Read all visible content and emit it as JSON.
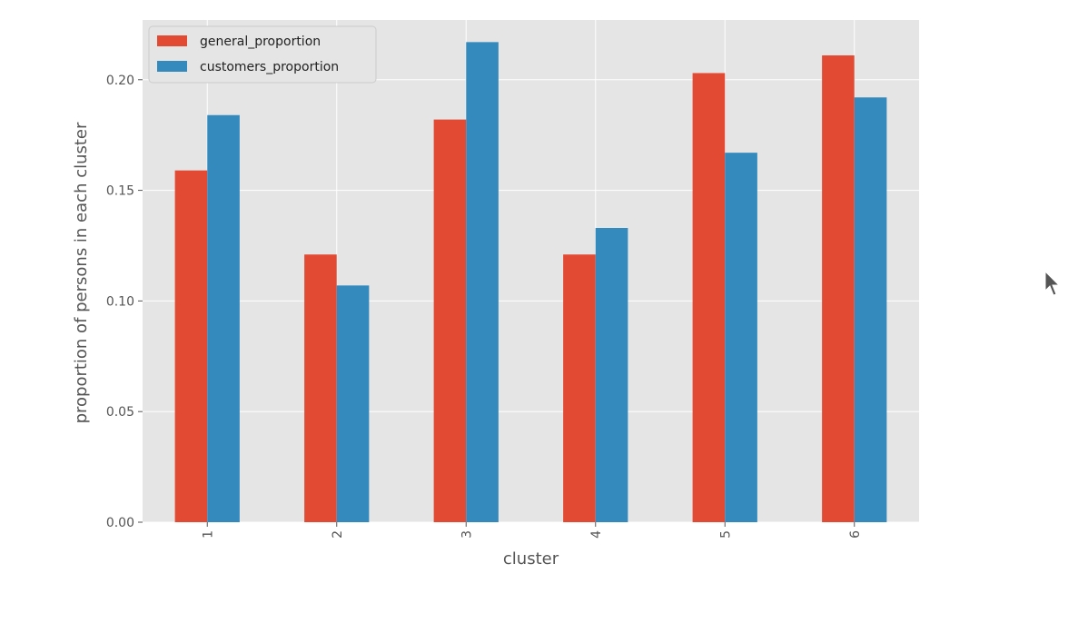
{
  "chart_data": {
    "type": "bar",
    "xlabel": "cluster",
    "ylabel": "proportion of persons in each cluster",
    "categories": [
      "1",
      "2",
      "3",
      "4",
      "5",
      "6"
    ],
    "series": [
      {
        "name": "general_proportion",
        "color": "#E24A33",
        "values": [
          0.159,
          0.121,
          0.182,
          0.121,
          0.203,
          0.211
        ]
      },
      {
        "name": "customers_proportion",
        "color": "#348ABD",
        "values": [
          0.184,
          0.107,
          0.217,
          0.133,
          0.167,
          0.192
        ]
      }
    ],
    "ylim": [
      0,
      0.227
    ],
    "yticks": [
      "0.00",
      "0.05",
      "0.10",
      "0.15",
      "0.20"
    ],
    "grid": true,
    "legend_position": "top-left",
    "background": "#E5E5E5"
  },
  "cursor_icon": "mouse-pointer-icon"
}
